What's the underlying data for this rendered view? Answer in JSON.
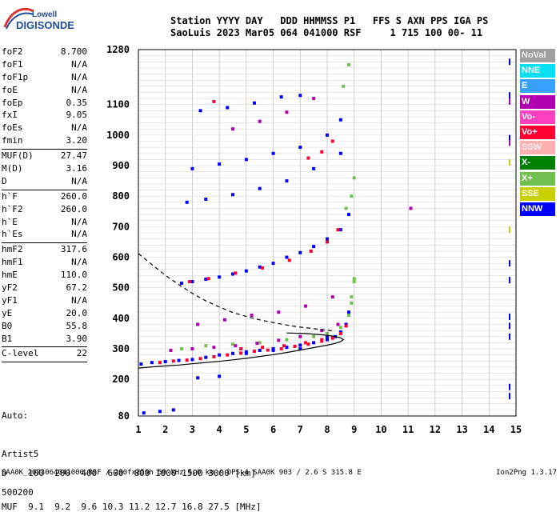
{
  "logo": {
    "line1": "Lowell",
    "line2": "DIGISONDE"
  },
  "header": {
    "line1": "Station YYYY DAY   DDD HHMMSS P1   FFS S AXN PPS IGA PS",
    "line2": "SaoLuis 2023 Mar05 064 041000 RSF     1 715 100 00- 11"
  },
  "params": [
    {
      "label": "foF2",
      "value": "8.700"
    },
    {
      "label": "foF1",
      "value": "N/A"
    },
    {
      "label": "foF1p",
      "value": "N/A"
    },
    {
      "label": "foE",
      "value": "N/A"
    },
    {
      "label": "foEp",
      "value": "0.35"
    },
    {
      "label": "fxI",
      "value": "9.05"
    },
    {
      "label": "foEs",
      "value": "N/A"
    },
    {
      "label": "fmin",
      "value": "3.20"
    },
    {
      "sep": true
    },
    {
      "label": "MUF(D)",
      "value": "27.47"
    },
    {
      "label": "M(D)",
      "value": "3.16"
    },
    {
      "label": "D",
      "value": "N/A"
    },
    {
      "sep": true
    },
    {
      "label": "h`F",
      "value": "260.0"
    },
    {
      "label": "h`F2",
      "value": "260.0"
    },
    {
      "label": "h`E",
      "value": "N/A"
    },
    {
      "label": "h`Es",
      "value": "N/A"
    },
    {
      "sep": true
    },
    {
      "label": "hmF2",
      "value": "317.6"
    },
    {
      "label": "hmF1",
      "value": "N/A"
    },
    {
      "label": "hmE",
      "value": "110.0"
    },
    {
      "label": "yF2",
      "value": "67.2"
    },
    {
      "label": "yF1",
      "value": "N/A"
    },
    {
      "label": "yE",
      "value": "20.0"
    },
    {
      "label": "B0",
      "value": "55.8"
    },
    {
      "label": "B1",
      "value": "3.90"
    },
    {
      "sep": true
    },
    {
      "label": "C-level",
      "value": "22"
    },
    {
      "sep": true
    }
  ],
  "auto": [
    "Auto:",
    "Artist5",
    "500200"
  ],
  "muf_table": {
    "line1": "D    100  200  400  600  800 1000 1500 3000 [km]",
    "line2": "MUF  9.1  9.2  9.6 10.3 11.2 12.7 16.8 27.5 [MHz]"
  },
  "footer": "SAA0K_2023064041000.RSF / 280fx256h 50 kHz 5.0 km / DPS-4 SAA0K 903 / 2.6 S 315.8 E",
  "version": "Ion2Png 1.3.17",
  "legend": [
    {
      "label": "NoVal",
      "bg": "#a0a0a0"
    },
    {
      "label": "NNE",
      "bg": "#00e0f0"
    },
    {
      "label": "E",
      "bg": "#38a0ff"
    },
    {
      "label": "W",
      "bg": "#b000b0"
    },
    {
      "label": "Vo-",
      "bg": "#ff40c0"
    },
    {
      "label": "Vo+",
      "bg": "#ff0030"
    },
    {
      "label": "SSW",
      "bg": "#ffb0b0"
    },
    {
      "label": "X-",
      "bg": "#008000"
    },
    {
      "label": "X+",
      "bg": "#70c050"
    },
    {
      "label": "SSE",
      "bg": "#c8d000"
    },
    {
      "label": "NNW",
      "bg": "#0000ff"
    }
  ],
  "chart_data": {
    "type": "scatter",
    "title": "",
    "xlabel": "",
    "ylabel": "",
    "xlim": [
      1,
      15
    ],
    "ylim": [
      80,
      1280
    ],
    "xticks": [
      1,
      2,
      3,
      4,
      5,
      6,
      7,
      8,
      9,
      10,
      11,
      12,
      13,
      14,
      15
    ],
    "yticks": [
      80,
      200,
      300,
      400,
      500,
      600,
      700,
      800,
      900,
      1000,
      1100,
      1280
    ],
    "grid": true,
    "series": [
      {
        "name": "NNW",
        "color": "#0000ff",
        "x": [
          1.1,
          1.5,
          2.0,
          2.5,
          3.0,
          3.5,
          4.0,
          4.5,
          5.0,
          5.5,
          6.0,
          6.5,
          7.0,
          7.5,
          8.0,
          8.3,
          8.5,
          8.7,
          8.8,
          2.6,
          3.0,
          3.5,
          4.0,
          4.5,
          5.0,
          5.5,
          6.0,
          6.5,
          7.0,
          7.5,
          8.0,
          8.5,
          8.8,
          2.8,
          3.5,
          4.5,
          5.5,
          6.5,
          7.5,
          8.5,
          3.0,
          4.0,
          5.0,
          6.0,
          7.0,
          8.0,
          8.5,
          3.3,
          4.3,
          5.3,
          6.3,
          7.0,
          1.2,
          1.8,
          2.3,
          3.2,
          4.0,
          5.0,
          6.0,
          7.0,
          8.0
        ],
        "y": [
          250,
          255,
          258,
          262,
          265,
          272,
          280,
          285,
          290,
          295,
          300,
          305,
          312,
          320,
          330,
          340,
          355,
          380,
          420,
          515,
          520,
          528,
          535,
          545,
          555,
          568,
          580,
          600,
          615,
          635,
          660,
          690,
          740,
          780,
          790,
          805,
          825,
          850,
          890,
          940,
          890,
          905,
          920,
          940,
          960,
          1000,
          1050,
          1080,
          1090,
          1105,
          1125,
          1130,
          90,
          95,
          100,
          205,
          210,
          285,
          295,
          300,
          340
        ]
      },
      {
        "name": "Vo+",
        "color": "#ff0030",
        "x": [
          1.8,
          2.3,
          2.8,
          3.3,
          3.8,
          4.3,
          4.8,
          5.3,
          5.8,
          6.3,
          6.8,
          7.3,
          7.8,
          8.2,
          8.5,
          8.7,
          2.9,
          3.6,
          4.6,
          5.6,
          6.6,
          7.4,
          8.0,
          8.4,
          7.3,
          7.8,
          8.2,
          3.8,
          4.8,
          5.6,
          6.4,
          7.2,
          7.8
        ],
        "y": [
          255,
          260,
          263,
          268,
          274,
          280,
          286,
          292,
          296,
          300,
          308,
          315,
          325,
          335,
          350,
          375,
          520,
          530,
          548,
          565,
          590,
          620,
          650,
          690,
          925,
          945,
          980,
          1110,
          300,
          305,
          310,
          320,
          330
        ]
      },
      {
        "name": "X+",
        "color": "#70c050",
        "x": [
          2.6,
          3.5,
          4.5,
          5.5,
          6.5,
          7.5,
          8.0,
          8.5,
          8.8,
          8.9,
          9.0,
          8.7,
          8.9,
          9.0,
          8.6,
          8.8,
          8.9,
          9.0
        ],
        "y": [
          300,
          310,
          315,
          320,
          330,
          340,
          350,
          370,
          410,
          470,
          530,
          760,
          800,
          860,
          1160,
          1230,
          450,
          520
        ]
      },
      {
        "name": "W",
        "color": "#b000b0",
        "x": [
          2.2,
          3.0,
          3.8,
          4.6,
          5.4,
          6.2,
          7.0,
          7.8,
          8.4,
          3.2,
          4.2,
          5.2,
          6.2,
          7.2,
          8.2,
          4.5,
          5.5,
          6.5,
          7.5,
          11.1
        ],
        "y": [
          295,
          300,
          305,
          310,
          318,
          328,
          340,
          360,
          380,
          380,
          395,
          410,
          420,
          440,
          470,
          1020,
          1045,
          1075,
          1120,
          760
        ]
      }
    ],
    "curves": [
      {
        "name": "profile",
        "style": "solid",
        "x": [
          1.0,
          1.5,
          2.0,
          2.5,
          3.0,
          3.5,
          4.0,
          4.5,
          5.0,
          5.5,
          6.0,
          6.5,
          7.0,
          7.5,
          8.0,
          8.3,
          8.5,
          8.6,
          8.5,
          8.2,
          7.8,
          7.2,
          6.5
        ],
        "y": [
          237,
          241,
          244,
          247,
          251,
          255,
          259,
          264,
          269,
          275,
          281,
          288,
          296,
          304,
          312,
          318,
          324,
          330,
          336,
          342,
          346,
          350,
          352
        ]
      },
      {
        "name": "extrapolation",
        "style": "dashed",
        "x": [
          1.0,
          1.5,
          2.0,
          2.5,
          3.0,
          3.5,
          4.0,
          4.5,
          5.0,
          5.5,
          6.0,
          6.5,
          7.0,
          7.5,
          8.0,
          8.3
        ],
        "y": [
          612,
          576,
          541,
          510,
          482,
          457,
          437,
          419,
          406,
          395,
          386,
          378,
          371,
          366,
          361,
          358
        ]
      }
    ]
  }
}
